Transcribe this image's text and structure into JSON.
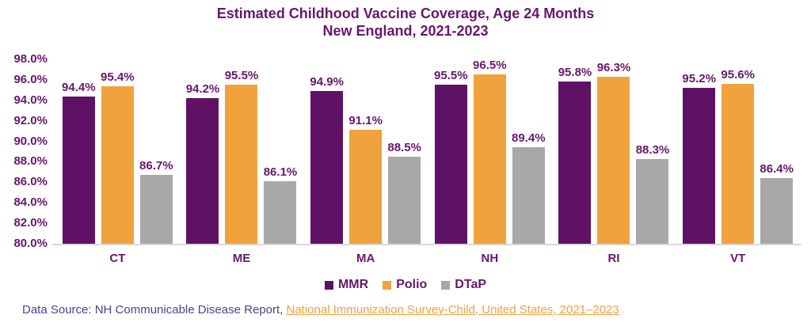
{
  "title": {
    "line1": "Estimated Childhood Vaccine Coverage, Age 24 Months",
    "line2": "New England, 2021-2023"
  },
  "chart_data": {
    "type": "bar",
    "title": "Estimated Childhood Vaccine Coverage, Age 24 Months",
    "subtitle": "New England, 2021-2023",
    "categories": [
      "CT",
      "ME",
      "MA",
      "NH",
      "RI",
      "VT"
    ],
    "series": [
      {
        "name": "MMR",
        "color": "#5F1166",
        "values": [
          94.4,
          94.2,
          94.9,
          95.5,
          95.8,
          95.2
        ]
      },
      {
        "name": "Polio",
        "color": "#F0A33C",
        "values": [
          95.4,
          95.5,
          91.1,
          96.5,
          96.3,
          95.6
        ]
      },
      {
        "name": "DTaP",
        "color": "#A8A8A8",
        "values": [
          86.7,
          86.1,
          88.5,
          89.4,
          88.3,
          86.4
        ]
      }
    ],
    "ylim": [
      80,
      98
    ],
    "ytick_labels": [
      "98.0%",
      "96.0%",
      "94.0%",
      "92.0%",
      "90.0%",
      "88.0%",
      "86.0%",
      "84.0%",
      "82.0%",
      "80.0%"
    ],
    "data_labels": true,
    "data_label_format": "0.0%",
    "grid": false,
    "legend_position": "bottom"
  },
  "footer": {
    "prefix": "Data Source: NH Communicable Disease Report, ",
    "link_text": "National Immunization Survey-Child, United States, 2021–2023"
  },
  "colors": {
    "title_text": "#67176E",
    "axis_text": "#67176E",
    "footer_text": "#4E4191",
    "link": "#F0A140",
    "axis_line": "#D9D9D9",
    "background": "#FFFFFF"
  }
}
